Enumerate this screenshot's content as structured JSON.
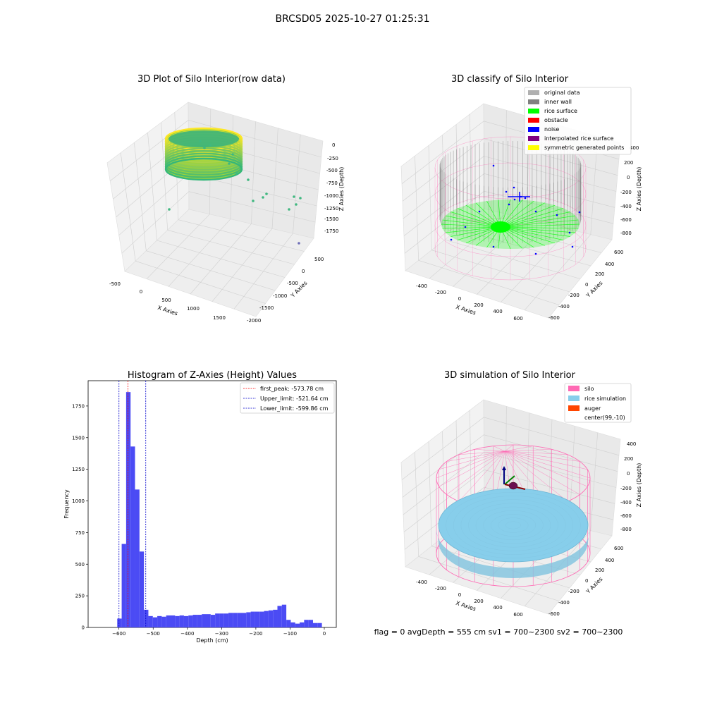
{
  "figure": {
    "suptitle": "BRCSD05 2025-10-27 01:25:31",
    "footer": "flag = 0    avgDepth = 555 cm  sv1 = 700~2300  sv2 = 700~2300"
  },
  "colors": {
    "hist_bar": "#4B4BF4",
    "first_peak_line": "#FF0000",
    "limit_lines": "#0000CC",
    "silo": "#FF69B4",
    "rice_simulation": "#87CEEB",
    "auger": "#FF4500",
    "inner_wall": "#808080",
    "rice_surface": "#00FF00",
    "noise": "#0000FF",
    "obstacle": "#FF0000",
    "interpolated": "#800080",
    "symmetric": "#FFFF00",
    "original_data": "#B0B0B0"
  },
  "panel_raw": {
    "title": "3D Plot of Silo Interior(row data)",
    "xlabel": "X Axies",
    "ylabel": "Y Axies",
    "zlabel": "Z Axies (Depth)",
    "xticks": [
      "-500",
      "0",
      "500",
      "1000",
      "1500"
    ],
    "yticks": [
      "500",
      "0",
      "-500",
      "-1000",
      "-1500",
      "-2000"
    ],
    "zticks": [
      "0",
      "-250",
      "-500",
      "-750",
      "-1000",
      "-1250",
      "-1500",
      "-1750"
    ]
  },
  "panel_classify": {
    "title": "3D classify of Silo Interior",
    "xlabel": "X Axies",
    "ylabel": "Y Axies",
    "zlabel": "Z Axies (Depth)",
    "xticks": [
      "-400",
      "-200",
      "0",
      "200",
      "400",
      "600"
    ],
    "yticks": [
      "600",
      "400",
      "200",
      "0",
      "-200",
      "-400",
      "-600"
    ],
    "zticks": [
      "400",
      "200",
      "0",
      "-200",
      "-400",
      "-600",
      "-800"
    ],
    "legend": [
      "original data",
      "inner wall",
      "rice surface",
      "obstacle",
      "noise",
      "interpolated rice surface",
      "symmetric generated points"
    ]
  },
  "panel_sim": {
    "title": "3D simulation of Silo Interior",
    "xlabel": "X Axies",
    "ylabel": "Y Axies",
    "zlabel": "Z Axies (Depth)",
    "xticks": [
      "-400",
      "-200",
      "0",
      "200",
      "400",
      "600"
    ],
    "yticks": [
      "600",
      "400",
      "200",
      "0",
      "-200",
      "-400",
      "-600"
    ],
    "zticks": [
      "400",
      "200",
      "0",
      "-200",
      "-400",
      "-600",
      "-800"
    ],
    "legend": [
      "silo",
      "rice simulation",
      "auger",
      "center(99,-10)"
    ]
  },
  "chart_data": [
    {
      "type": "bar",
      "title": "Histogram of Z-Axies (Height) Values",
      "xlabel": "Depth (cm)",
      "ylabel": "Frequency",
      "xlim": [
        -690,
        35
      ],
      "ylim": [
        0,
        1950
      ],
      "xticks": [
        -600,
        -500,
        -400,
        -300,
        -200,
        -100,
        0
      ],
      "yticks": [
        0,
        250,
        500,
        750,
        1000,
        1250,
        1500,
        1750
      ],
      "bin_edges": [
        -605,
        -592,
        -579,
        -566,
        -553,
        -540,
        -527,
        -514,
        -501,
        -488,
        -475,
        -462,
        -449,
        -436,
        -423,
        -410,
        -397,
        -384,
        -371,
        -358,
        -345,
        -332,
        -319,
        -306,
        -293,
        -280,
        -267,
        -254,
        -241,
        -228,
        -215,
        -202,
        -189,
        -176,
        -163,
        -150,
        -137,
        -124,
        -111,
        -98,
        -85,
        -72,
        -59,
        -46,
        -33,
        -20,
        -7
      ],
      "values": [
        70,
        660,
        1860,
        1430,
        1090,
        600,
        140,
        90,
        80,
        90,
        85,
        95,
        95,
        90,
        95,
        90,
        95,
        100,
        100,
        105,
        105,
        100,
        110,
        110,
        110,
        115,
        115,
        115,
        115,
        120,
        125,
        125,
        125,
        130,
        135,
        140,
        170,
        180,
        60,
        40,
        30,
        40,
        60,
        60,
        35,
        35
      ],
      "vlines": [
        {
          "label": "first_peak: -573.78 cm",
          "x": -573.78,
          "color": "#FF0000"
        },
        {
          "label": "Upper_limit: -521.64 cm",
          "x": -521.64,
          "color": "#0000CC"
        },
        {
          "label": "Lower_limit: -599.86 cm",
          "x": -599.86,
          "color": "#0000CC"
        }
      ]
    }
  ]
}
